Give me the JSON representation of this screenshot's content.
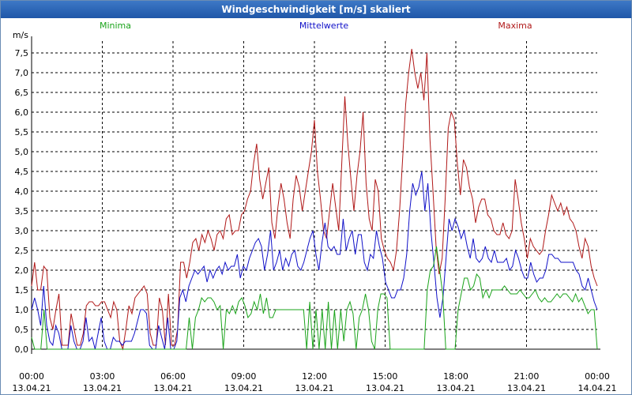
{
  "window": {
    "title": "Windgeschwindigkeit [m/s] skaliert"
  },
  "chart_data": {
    "type": "line",
    "title": "Windgeschwindigkeit [m/s] skaliert",
    "ylabel": "m/s",
    "xlabel": "",
    "ylim": [
      0,
      7.8
    ],
    "xlim_hours": [
      0,
      24
    ],
    "grid": true,
    "y_ticks": [
      "0,0",
      "0,5",
      "1,0",
      "1,5",
      "2,0",
      "2,5",
      "3,0",
      "3,5",
      "4,0",
      "4,5",
      "5,0",
      "5,5",
      "6,0",
      "6,5",
      "7,0",
      "7,5"
    ],
    "x_ticks": [
      {
        "time": "00:00",
        "date": "13.04.21"
      },
      {
        "time": "03:00",
        "date": "13.04.21"
      },
      {
        "time": "06:00",
        "date": "13.04.21"
      },
      {
        "time": "09:00",
        "date": "13.04.21"
      },
      {
        "time": "12:00",
        "date": "13.04.21"
      },
      {
        "time": "15:00",
        "date": "13.04.21"
      },
      {
        "time": "18:00",
        "date": "13.04.21"
      },
      {
        "time": "21:00",
        "date": "13.04.21"
      },
      {
        "time": "00:00",
        "date": "14.04.21"
      }
    ],
    "colors": {
      "minima": "#1aa31a",
      "mittel": "#1010c8",
      "maxima": "#b01818",
      "grid": "#000000",
      "axis": "#000000"
    },
    "legend": [
      "Minima",
      "Mittelwerte",
      "Maxima"
    ],
    "legend_position": "top",
    "series": [
      {
        "name": "Maxima",
        "key": "maxima",
        "values": [
          1.6,
          2.2,
          1.5,
          1.5,
          2.1,
          2.0,
          0.8,
          0.5,
          1.0,
          1.4,
          0.1,
          0.1,
          0.1,
          0.9,
          0.5,
          0.1,
          0.1,
          0.4,
          1.1,
          1.2,
          1.2,
          1.1,
          1.1,
          1.2,
          1.2,
          1.0,
          0.8,
          1.2,
          1.0,
          0.2,
          0.0,
          0.5,
          1.1,
          0.9,
          1.3,
          1.4,
          1.5,
          1.6,
          1.4,
          0.4,
          0.1,
          0.1,
          1.3,
          1.0,
          0.1,
          1.4,
          0.1,
          0.1,
          0.5,
          2.2,
          2.2,
          1.8,
          2.2,
          2.7,
          2.8,
          2.5,
          2.9,
          2.7,
          3.0,
          2.8,
          2.5,
          2.9,
          3.0,
          2.8,
          3.3,
          3.4,
          2.9,
          3.0,
          3.0,
          3.4,
          3.5,
          3.8,
          4.0,
          4.7,
          5.2,
          4.3,
          3.8,
          4.2,
          4.6,
          3.2,
          2.8,
          3.6,
          4.2,
          3.8,
          3.2,
          2.8,
          3.8,
          4.4,
          4.1,
          3.5,
          4.0,
          4.5,
          5.0,
          5.8,
          4.5,
          3.8,
          3.0,
          2.8,
          3.5,
          4.2,
          3.6,
          3.0,
          4.7,
          6.4,
          5.2,
          4.3,
          3.5,
          4.4,
          5.0,
          6.0,
          4.2,
          3.3,
          3.0,
          4.3,
          4.0,
          2.8,
          2.5,
          2.3,
          2.2,
          2.0,
          2.5,
          3.5,
          4.8,
          6.2,
          7.0,
          7.6,
          7.0,
          6.6,
          7.0,
          6.3,
          7.5,
          5.3,
          4.0,
          2.6,
          1.9,
          2.3,
          3.8,
          5.6,
          6.0,
          5.8,
          4.7,
          3.9,
          4.8,
          4.6,
          4.1,
          3.8,
          3.2,
          3.6,
          3.8,
          3.8,
          3.4,
          3.3,
          3.0,
          2.9,
          2.9,
          3.2,
          2.9,
          2.8,
          3.0,
          4.3,
          3.8,
          3.2,
          2.8,
          2.3,
          2.8,
          2.6,
          2.5,
          2.4,
          2.5,
          3.0,
          3.4,
          3.9,
          3.7,
          3.5,
          3.7,
          3.4,
          3.6,
          3.3,
          3.2,
          3.0,
          2.6,
          2.3,
          2.8,
          2.6,
          2.1,
          1.8,
          1.6
        ]
      },
      {
        "name": "Mittelwerte",
        "key": "mittel",
        "values": [
          1.0,
          1.3,
          1.0,
          0.6,
          1.6,
          0.6,
          0.2,
          0.1,
          0.6,
          0.4,
          0.0,
          0.0,
          0.0,
          0.6,
          0.2,
          0.0,
          0.0,
          0.2,
          0.8,
          0.2,
          0.3,
          0.0,
          0.4,
          0.8,
          0.2,
          0.0,
          0.0,
          0.3,
          0.2,
          0.2,
          0.1,
          0.2,
          0.2,
          0.2,
          0.4,
          0.7,
          1.0,
          1.0,
          0.9,
          0.1,
          0.0,
          0.0,
          0.6,
          0.3,
          0.0,
          0.8,
          0.0,
          0.0,
          0.2,
          1.3,
          1.5,
          1.2,
          1.6,
          1.8,
          2.0,
          1.9,
          2.0,
          2.1,
          1.7,
          2.0,
          1.8,
          2.0,
          2.1,
          1.9,
          2.2,
          2.0,
          2.1,
          2.1,
          2.4,
          1.8,
          2.1,
          2.0,
          2.3,
          2.5,
          2.7,
          2.8,
          2.6,
          2.0,
          2.4,
          3.0,
          2.0,
          2.2,
          2.5,
          2.0,
          2.3,
          2.1,
          2.4,
          2.5,
          2.1,
          2.0,
          2.2,
          2.5,
          2.8,
          3.0,
          2.4,
          2.0,
          2.7,
          3.2,
          2.6,
          2.5,
          2.6,
          2.4,
          2.4,
          3.3,
          2.5,
          2.8,
          3.0,
          2.4,
          2.9,
          2.9,
          2.2,
          2.0,
          2.4,
          2.3,
          3.0,
          2.6,
          2.3,
          1.7,
          1.5,
          1.3,
          1.3,
          1.5,
          1.5,
          1.8,
          2.4,
          3.5,
          4.2,
          3.9,
          4.1,
          4.5,
          3.5,
          4.2,
          3.0,
          2.2,
          1.3,
          0.8,
          1.3,
          2.3,
          3.3,
          3.0,
          3.3,
          3.1,
          2.8,
          3.0,
          2.6,
          2.3,
          2.8,
          2.3,
          2.2,
          2.3,
          2.6,
          2.3,
          2.2,
          2.5,
          2.2,
          2.2,
          2.2,
          2.3,
          2.0,
          2.1,
          2.5,
          2.3,
          2.0,
          1.8,
          1.8,
          2.2,
          1.9,
          1.7,
          1.8,
          1.8,
          2.0,
          2.4,
          2.4,
          2.3,
          2.3,
          2.2,
          2.2,
          2.2,
          2.2,
          2.2,
          2.0,
          1.9,
          1.6,
          1.5,
          1.8,
          1.5,
          1.2,
          1.0
        ]
      },
      {
        "name": "Minima",
        "key": "minima",
        "values": [
          0.3,
          0.0,
          0.0,
          0.0,
          1.0,
          0.0,
          0.0,
          0.0,
          0.0,
          0.0,
          0.0,
          0.0,
          0.0,
          0.0,
          0.0,
          0.0,
          0.0,
          0.0,
          0.0,
          0.0,
          0.0,
          0.0,
          0.0,
          0.0,
          0.0,
          0.0,
          0.0,
          0.0,
          0.0,
          0.0,
          0.0,
          0.0,
          0.0,
          0.0,
          0.0,
          0.0,
          0.0,
          0.0,
          0.0,
          0.0,
          0.0,
          0.0,
          0.0,
          0.0,
          0.0,
          0.0,
          0.0,
          0.0,
          0.0,
          0.0,
          0.0,
          0.8,
          0.0,
          0.8,
          1.0,
          1.3,
          1.2,
          1.3,
          1.3,
          1.2,
          1.0,
          1.1,
          0.0,
          1.0,
          0.9,
          1.1,
          0.9,
          1.2,
          1.3,
          1.1,
          0.8,
          0.9,
          1.2,
          1.0,
          1.4,
          0.9,
          1.3,
          0.8,
          0.8,
          1.0,
          1.0,
          1.0,
          1.0,
          1.0,
          1.0,
          1.0,
          1.0,
          1.0,
          1.0,
          0.0,
          1.2,
          0.0,
          1.0,
          0.0,
          1.0,
          0.0,
          1.2,
          0.0,
          1.0,
          0.0,
          1.0,
          0.2,
          1.0,
          1.2,
          0.9,
          0.0,
          0.8,
          1.0,
          1.4,
          1.0,
          0.2,
          0.0,
          1.0,
          1.4,
          1.4,
          1.3,
          0.0,
          0.0,
          0.0,
          0.0,
          0.0,
          0.0,
          0.0,
          0.0,
          0.0,
          0.0,
          0.0,
          0.0,
          1.5,
          2.0,
          2.1,
          2.6,
          2.0,
          1.4,
          0.0,
          0.0,
          0.0,
          0.0,
          1.0,
          1.4,
          1.8,
          1.8,
          1.5,
          1.6,
          1.9,
          1.8,
          1.3,
          1.5,
          1.3,
          1.5,
          1.5,
          1.5,
          1.5,
          1.6,
          1.5,
          1.4,
          1.4,
          1.4,
          1.5,
          1.4,
          1.3,
          1.3,
          1.4,
          1.5,
          1.3,
          1.2,
          1.3,
          1.2,
          1.2,
          1.3,
          1.4,
          1.3,
          1.4,
          1.4,
          1.3,
          1.2,
          1.4,
          1.2,
          1.3,
          1.1,
          0.9,
          1.0,
          1.0,
          0.0
        ]
      }
    ]
  }
}
